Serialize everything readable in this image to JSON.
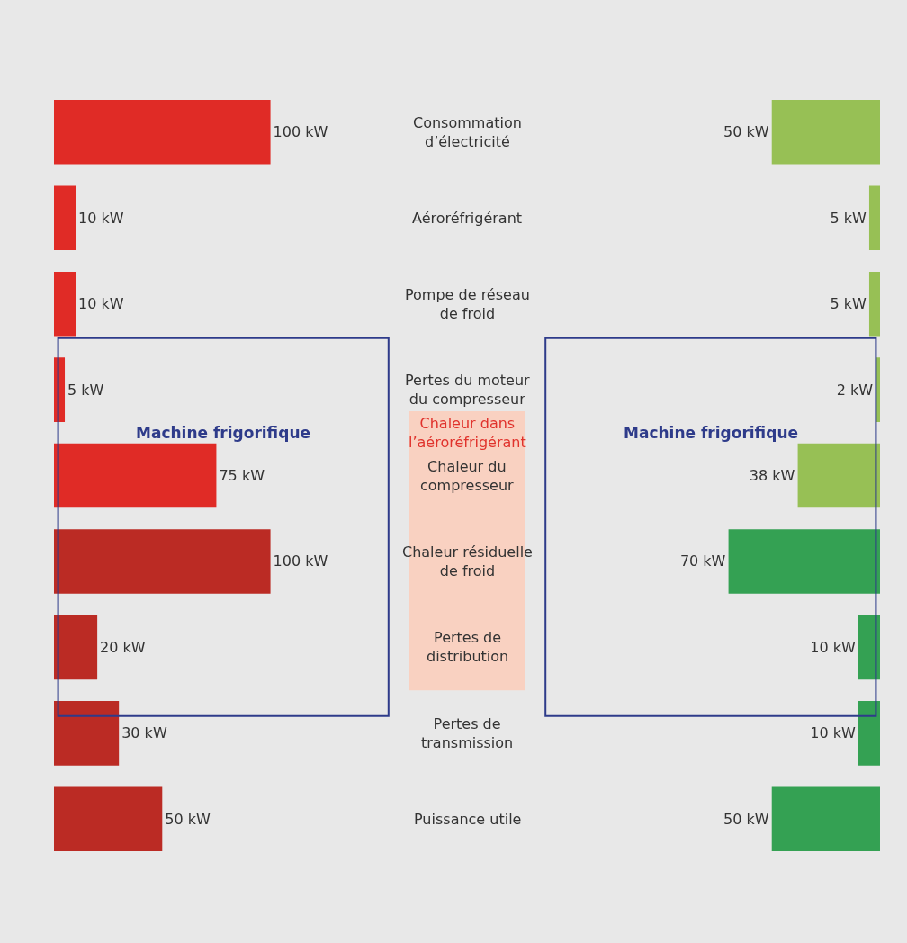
{
  "chart_data": {
    "type": "other",
    "categories": [
      "Consommation d’électricité",
      "Aéroréfrigérant",
      "Pompe de réseau de froid",
      "Pertes du moteur du compresseur",
      "Chaleur du compresseur",
      "Chaleur résiduelle de froid",
      "Pertes de distribution",
      "Pertes de transmission",
      "Puissance utile"
    ],
    "series": [
      {
        "colors": [
          "#e02b26",
          "#e02b26",
          "#e02b26",
          "#e02b26",
          "#e02b26",
          "#bb2b24",
          "#bb2b24",
          "#bb2b24",
          "#bb2b24"
        ],
        "values": [
          100,
          10,
          10,
          5,
          75,
          100,
          20,
          30,
          50
        ],
        "value_labels": [
          "100 kW",
          "10 kW",
          "10 kW",
          "5 kW",
          "75 kW",
          "100 kW",
          "20 kW",
          "30 kW",
          "50 kW"
        ]
      },
      {
        "colors": [
          "#97c055",
          "#97c055",
          "#97c055",
          "#97c055",
          "#97c055",
          "#34a153",
          "#34a153",
          "#34a153",
          "#34a153"
        ],
        "values": [
          50,
          5,
          5,
          2,
          38,
          70,
          10,
          10,
          50
        ],
        "value_labels": [
          "50 kW",
          "5 kW",
          "5 kW",
          "2 kW",
          "38 kW",
          "70 kW",
          "10 kW",
          "10 kW",
          "50 kW"
        ]
      }
    ],
    "annotations": [
      "Machine frigorifique",
      "Chaleur dans l’aéroréfrigérant",
      "Machine frigorifique"
    ],
    "legend": false
  }
}
